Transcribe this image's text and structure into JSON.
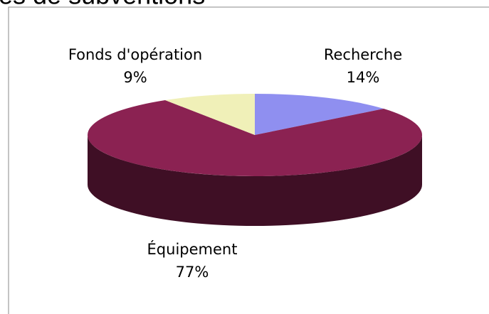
{
  "chart_data": {
    "type": "pie3d",
    "title": "es de subventions",
    "categories": [
      "Recherche",
      "Équipement",
      "Fonds d'opération"
    ],
    "values": [
      14,
      77,
      9
    ],
    "value_labels": [
      "14%",
      "77%",
      "9%"
    ],
    "colors": [
      "#8f8ff0",
      "#8b2252",
      "#f0f0b8"
    ]
  }
}
